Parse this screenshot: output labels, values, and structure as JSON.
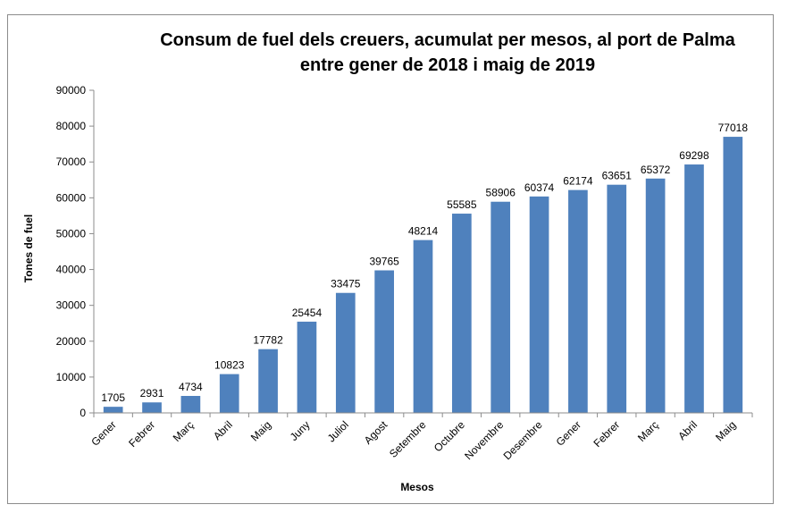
{
  "chart_data": {
    "type": "bar",
    "title_line1": "Consum de fuel dels creuers, acumulat per mesos, al port de Palma",
    "title_line2": "entre gener de 2018 i maig de 2019",
    "xlabel": "Mesos",
    "ylabel": "Tones de fuel",
    "ylim": [
      0,
      90000
    ],
    "ytick_step": 10000,
    "yticks": [
      "0",
      "10000",
      "20000",
      "30000",
      "40000",
      "50000",
      "60000",
      "70000",
      "80000",
      "90000"
    ],
    "categories": [
      "Gener",
      "Febrer",
      "Març",
      "Abril",
      "Maig",
      "Juny",
      "Juliol",
      "Agost",
      "Setembre",
      "Octubre",
      "Novembre",
      "Desembre",
      "Gener",
      "Febrer",
      "Març",
      "Abril",
      "Maig"
    ],
    "values": [
      1705,
      2931,
      4734,
      10823,
      17782,
      25454,
      33475,
      39765,
      48214,
      55585,
      58906,
      60374,
      62174,
      63651,
      65372,
      69298,
      77018
    ],
    "bar_color": "#4f81bd",
    "grid": false,
    "legend": "none"
  }
}
